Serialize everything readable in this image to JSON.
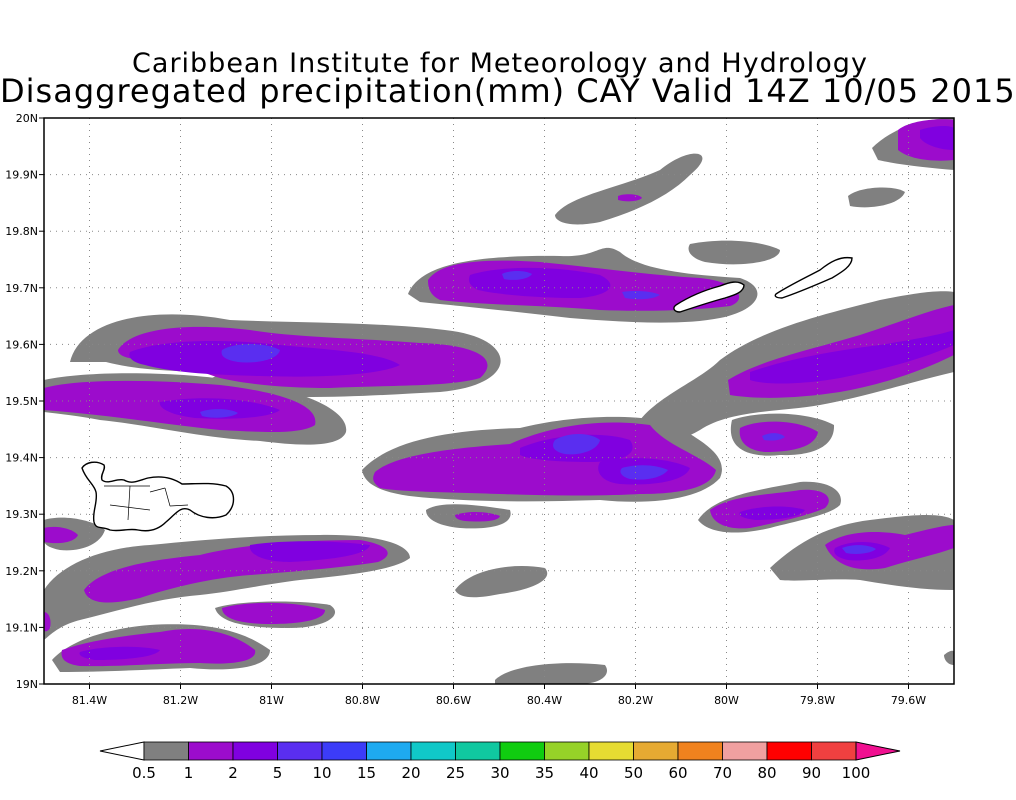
{
  "title": {
    "line1": "Caribbean Institute for Meteorology and Hydrology",
    "line2": "Disaggregated precipitation(mm) CAY Valid 14Z 10/05 2015"
  },
  "map": {
    "lon_range": [
      -81.5,
      -79.5
    ],
    "lat_range": [
      19.0,
      20.0
    ],
    "lon_ticks": [
      {
        "value": -81.4,
        "label": "81.4W"
      },
      {
        "value": -81.2,
        "label": "81.2W"
      },
      {
        "value": -81.0,
        "label": "81W"
      },
      {
        "value": -80.8,
        "label": "80.8W"
      },
      {
        "value": -80.6,
        "label": "80.6W"
      },
      {
        "value": -80.4,
        "label": "80.4W"
      },
      {
        "value": -80.2,
        "label": "80.2W"
      },
      {
        "value": -80.0,
        "label": "80W"
      },
      {
        "value": -79.8,
        "label": "79.8W"
      },
      {
        "value": -79.6,
        "label": "79.6W"
      }
    ],
    "lat_ticks": [
      {
        "value": 20.0,
        "label": "20N"
      },
      {
        "value": 19.9,
        "label": "19.9N"
      },
      {
        "value": 19.8,
        "label": "19.8N"
      },
      {
        "value": 19.7,
        "label": "19.7N"
      },
      {
        "value": 19.6,
        "label": "19.6N"
      },
      {
        "value": 19.5,
        "label": "19.5N"
      },
      {
        "value": 19.4,
        "label": "19.4N"
      },
      {
        "value": 19.3,
        "label": "19.3N"
      },
      {
        "value": 19.2,
        "label": "19.2N"
      },
      {
        "value": 19.1,
        "label": "19.1N"
      },
      {
        "value": 19.0,
        "label": "19N"
      }
    ],
    "grid": "dotted",
    "islands": [
      "Grand Cayman",
      "Little Cayman",
      "Cayman Brac"
    ]
  },
  "colorbar": {
    "colors": [
      "#ffffff",
      "#808080",
      "#9c0ccc",
      "#8000e0",
      "#5a2ef0",
      "#3c3cf8",
      "#1eaaf0",
      "#10c8c8",
      "#10c8a0",
      "#10cc10",
      "#96d228",
      "#e6dc32",
      "#e6aa32",
      "#f0821e",
      "#f0a0a0",
      "#ff0000",
      "#f04040",
      "#f01090"
    ],
    "labels": [
      "0.5",
      "1",
      "2",
      "5",
      "10",
      "15",
      "20",
      "25",
      "30",
      "35",
      "40",
      "50",
      "60",
      "70",
      "80",
      "90",
      "100"
    ]
  },
  "colors": {
    "gray": "#808080",
    "purple": "#9c0ccc",
    "violet": "#8000e0",
    "blue": "#5a2ef0"
  }
}
